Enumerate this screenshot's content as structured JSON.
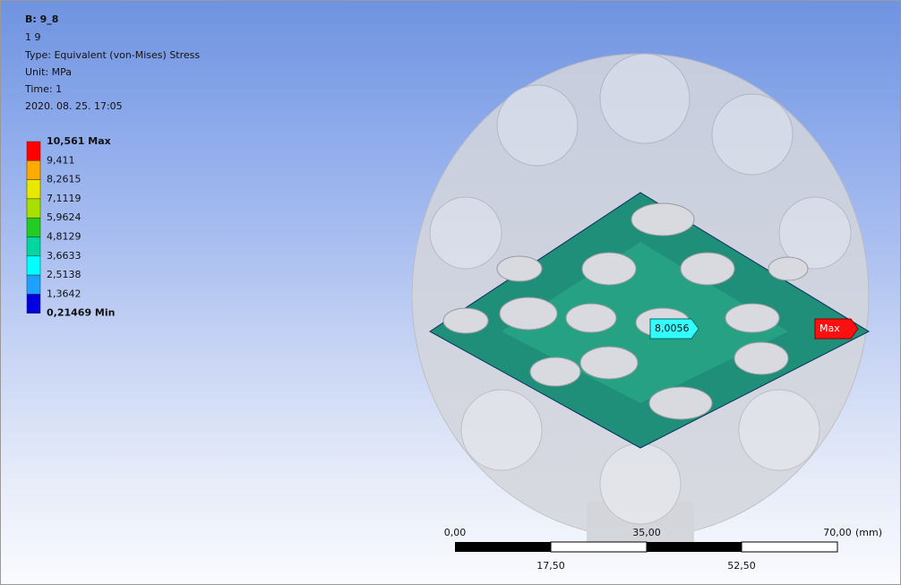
{
  "header": {
    "title": "B: 9_8",
    "subtitle": "1 9",
    "type": "Type: Equivalent (von-Mises) Stress",
    "unit": "Unit: MPa",
    "time": "Time: 1",
    "date": "2020. 08. 25. 17:05"
  },
  "legend": {
    "labels": [
      "10,561 Max",
      "9,411",
      "8,2615",
      "7,1119",
      "5,9624",
      "4,8129",
      "3,6633",
      "2,5138",
      "1,3642",
      "0,21469 Min"
    ],
    "colors": [
      "#ff0000",
      "#ffaa00",
      "#e8e800",
      "#a8e000",
      "#22cc22",
      "#00d7a0",
      "#00ffff",
      "#1ea0ff",
      "#0000e0"
    ]
  },
  "probes": {
    "value": "8,0056",
    "max": "Max"
  },
  "scale": {
    "top": [
      "0,00",
      "35,00",
      "70,00"
    ],
    "unit": "(mm)",
    "bottom": [
      "17,50",
      "52,50"
    ]
  }
}
